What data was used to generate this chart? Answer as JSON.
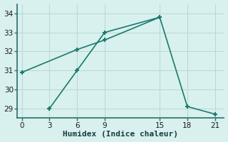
{
  "line1_x": [
    0,
    6,
    9,
    15
  ],
  "line1_y": [
    30.9,
    32.1,
    32.6,
    33.8
  ],
  "line2_x": [
    3,
    6,
    9,
    15,
    18,
    21
  ],
  "line2_y": [
    29.0,
    31.0,
    33.0,
    33.8,
    29.1,
    28.7
  ],
  "line_color": "#1a7a6e",
  "bg_color": "#d8f0ee",
  "grid_color": "#b8d8d4",
  "axis_color": "#2a6e6a",
  "xlabel": "Humidex (Indice chaleur)",
  "ylim": [
    28.5,
    34.5
  ],
  "xlim": [
    -0.5,
    22
  ],
  "yticks": [
    29,
    30,
    31,
    32,
    33,
    34
  ],
  "xticks": [
    0,
    3,
    6,
    9,
    15,
    18,
    21
  ],
  "tick_fontsize": 7.5,
  "xlabel_fontsize": 8
}
